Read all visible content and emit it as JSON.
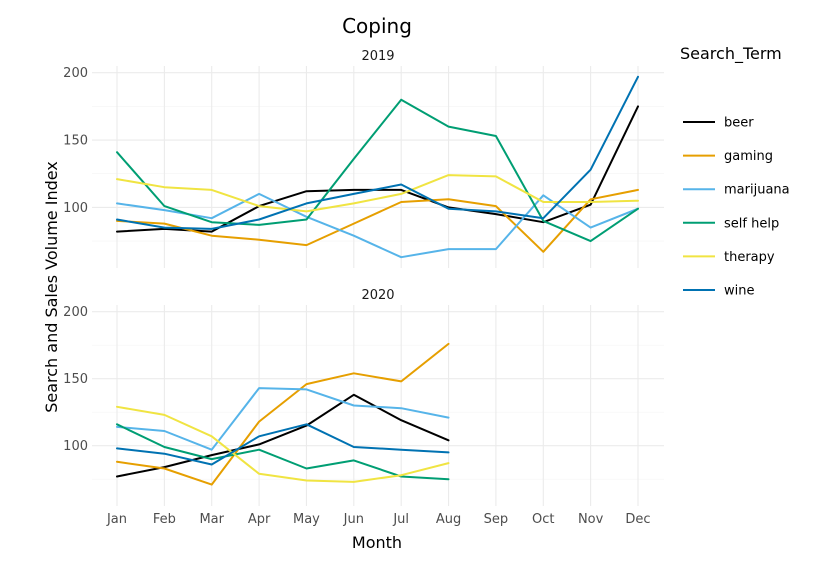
{
  "chart_data": {
    "type": "line",
    "title": "Coping",
    "xlabel": "Month",
    "ylabel": "Search and Sales Volume Index",
    "legend_title": "Search_Term",
    "legend_position": "right",
    "grid": true,
    "categories": [
      "Jan",
      "Feb",
      "Mar",
      "Apr",
      "May",
      "Jun",
      "Jul",
      "Aug",
      "Sep",
      "Oct",
      "Nov",
      "Dec"
    ],
    "ylim": [
      55,
      205
    ],
    "yticks": [
      100,
      150,
      200
    ],
    "series_styles": [
      {
        "name": "beer",
        "color": "#000000"
      },
      {
        "name": "gaming",
        "color": "#E69F00"
      },
      {
        "name": "marijuana",
        "color": "#56B4E9"
      },
      {
        "name": "self help",
        "color": "#009E73"
      },
      {
        "name": "therapy",
        "color": "#F0E442"
      },
      {
        "name": "wine",
        "color": "#0072B2"
      }
    ],
    "panels": [
      {
        "label": "2019",
        "series": [
          {
            "name": "beer",
            "values": [
              82,
              84,
              82,
              101,
              112,
              113,
              113,
              100,
              95,
              89,
              102,
              175
            ]
          },
          {
            "name": "gaming",
            "values": [
              90,
              88,
              79,
              76,
              72,
              88,
              104,
              106,
              101,
              67,
              106,
              113
            ]
          },
          {
            "name": "marijuana",
            "values": [
              103,
              98,
              92,
              110,
              93,
              79,
              63,
              69,
              69,
              109,
              85,
              99
            ]
          },
          {
            "name": "self help",
            "values": [
              141,
              101,
              89,
              87,
              91,
              136,
              180,
              160,
              153,
              90,
              75,
              99
            ]
          },
          {
            "name": "therapy",
            "values": [
              121,
              115,
              113,
              101,
              97,
              103,
              110,
              124,
              123,
              104,
              104,
              105
            ]
          },
          {
            "name": "wine",
            "values": [
              91,
              85,
              84,
              91,
              103,
              110,
              117,
              99,
              97,
              92,
              128,
              197
            ]
          }
        ]
      },
      {
        "label": "2020",
        "series": [
          {
            "name": "beer",
            "values": [
              77,
              84,
              93,
              101,
              115,
              138,
              119,
              104
            ]
          },
          {
            "name": "gaming",
            "values": [
              88,
              83,
              71,
              118,
              146,
              154,
              148,
              176
            ]
          },
          {
            "name": "marijuana",
            "values": [
              114,
              111,
              97,
              143,
              142,
              130,
              128,
              121
            ]
          },
          {
            "name": "self help",
            "values": [
              116,
              99,
              90,
              97,
              83,
              89,
              77,
              75
            ]
          },
          {
            "name": "therapy",
            "values": [
              129,
              123,
              107,
              79,
              74,
              73,
              78,
              87
            ]
          },
          {
            "name": "wine",
            "values": [
              98,
              94,
              86,
              107,
              116,
              99,
              97,
              95
            ]
          }
        ]
      }
    ]
  }
}
